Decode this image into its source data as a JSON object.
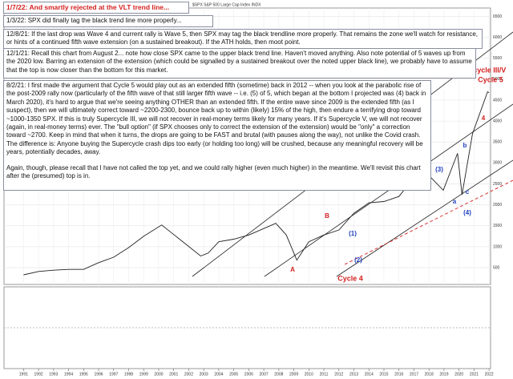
{
  "header": "$SPX S&P 500 Large Cap Index INDX",
  "notes": [
    "1/7/22:  And smartly rejected at the VLT trend line...",
    "1/3/22:  SPX did finally tag the black trend line more properly...",
    "12/8/21:  If the last drop was Wave 4 and current rally is Wave 5, then SPX may tag the black trendline more properly.  That remains the zone we'll watch for resistance, or hints of a continued fifth wave extension (on a sustained breakout).  If the ATH holds, then moot point.",
    "12/1/21:  Recall this chart from August 2... note how close SPX came to the upper black trend line.  Haven't moved anything.  Also note potential of 5 waves up from the 2020 low.  Barring an extension of the extension (which could be signalled by a sustained breakout over the noted upper black line), we probably have to assume that the top is now closer than the bottom for this market.",
    "8/2/21:  I first made the argument that Cycle 5 would play out as an extended fifth (sometime) back in 2012 -- when you look at the parabolic rise of the post-2009 rally now (particularly of the fifth wave of that still larger fifth wave -- i.e. (5) of 5, which began at the bottom I projected was (4) back in March 2020), it's hard to argue that we're seeing anything OTHER than an extended fifth.  If the entire wave since 2009 is the extended fifth (as I suspect), then we will ultimately correct toward ~2200-2300, bounce back up to within (likely) 15% of the high, then endure a terrifying drop toward ~1000-1350 SPX.  If this is truly Supercycle III, we will not recover in real-money terms likely for many years.  If it's Supercycle V, we will not recover (again, in real-money terms) ever.  The \"bull option\" (if SPX chooses only to correct the extension of the extension) would be \"only\" a correction toward ~2700.  Keep in mind that when it turns, the drops are going to be FAST and brutal (with pauses along the way), not unlike the Covid crash.  The difference is:  Anyone buying the Supercycle crash dips too early (or holding too long) will be crushed, because any meaningful recovery will be years, potentially decades, away.",
    "Again, though, please recall that I have not called the top yet, and we could rally higher (even much higher) in the meantime.  We'll revisit this chart after the (presumed) top is in."
  ],
  "chart_data": {
    "type": "line",
    "color": "#222222",
    "grid": true,
    "log_scale": false,
    "x": [
      1991,
      1992,
      1993,
      1994,
      1995,
      1996,
      1997,
      1998,
      1999,
      2000.2,
      2000.9,
      2001.5,
      2002.8,
      2003.3,
      2004,
      2005,
      2006,
      2007.8,
      2008.5,
      2009.2,
      2010,
      2011,
      2012,
      2013,
      2014,
      2015,
      2016,
      2017,
      2018,
      2018.95,
      2019.9,
      2020.2,
      2020.9,
      2021.9,
      2022.0
    ],
    "values": [
      330,
      410,
      440,
      460,
      460,
      620,
      750,
      980,
      1250,
      1520,
      1320,
      1150,
      780,
      850,
      1120,
      1180,
      1280,
      1560,
      1280,
      680,
      1120,
      1280,
      1400,
      1800,
      2050,
      2080,
      2200,
      2650,
      2700,
      2350,
      3230,
      2240,
      3700,
      4700,
      4680
    ],
    "xlim": [
      1989.7,
      2022.1
    ],
    "xticks": [
      1991,
      1992,
      1993,
      1994,
      1995,
      1996,
      1997,
      1998,
      1999,
      2000,
      2001,
      2002,
      2003,
      2004,
      2005,
      2006,
      2007,
      2008,
      2009,
      2010,
      2011,
      2012,
      2013,
      2014,
      2015,
      2016,
      2017,
      2018,
      2019,
      2020,
      2021,
      2022
    ],
    "ylim": [
      100,
      6700
    ],
    "yticks": [
      500,
      1000,
      1500,
      2000,
      2500,
      3000,
      3500,
      4000,
      4500,
      5000,
      5500,
      6000,
      6500
    ],
    "annotations": [
      {
        "text": "Supercycle III/V",
        "color": "#d42020"
      },
      {
        "text": "Cycle 5",
        "color": "#d42020"
      },
      {
        "text": "B",
        "color": "#d42020"
      },
      {
        "text": "A",
        "color": "#d42020"
      },
      {
        "text": "(1)",
        "color": "#1f3fbf"
      },
      {
        "text": "(2)",
        "color": "#1f3fbf"
      },
      {
        "text": "Cycle 4",
        "color": "#d42020"
      },
      {
        "text": "(3)",
        "color": "#1f3fbf"
      },
      {
        "text": "b",
        "color": "#1f3fbf"
      },
      {
        "text": "a",
        "color": "#1f3fbf"
      },
      {
        "text": "c",
        "color": "#1f3fbf"
      },
      {
        "text": "(4)",
        "color": "#1f3fbf"
      },
      {
        "text": "4",
        "color": "#d42020"
      }
    ]
  }
}
